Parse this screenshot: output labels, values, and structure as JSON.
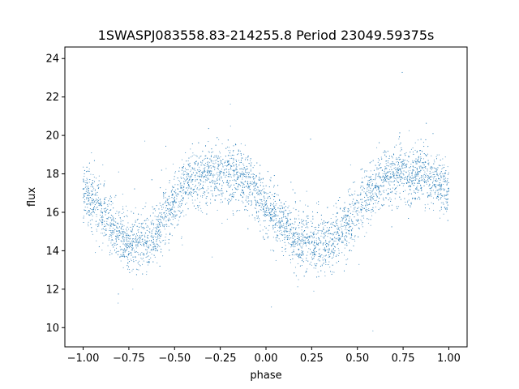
{
  "chart_data": {
    "type": "scatter",
    "title": "1SWASPJ083558.83-214255.8 Period 23049.59375s",
    "xlabel": "phase",
    "ylabel": "flux",
    "xlim": [
      -1.1,
      1.1
    ],
    "ylim": [
      9.0,
      24.6
    ],
    "xticks": [
      -1.0,
      -0.75,
      -0.5,
      -0.25,
      0.0,
      0.25,
      0.5,
      0.75,
      1.0
    ],
    "xtick_labels": [
      "−1.00",
      "−0.75",
      "−0.50",
      "−0.25",
      "0.00",
      "0.25",
      "0.50",
      "0.75",
      "1.00"
    ],
    "yticks": [
      10,
      12,
      14,
      16,
      18,
      20,
      22,
      24
    ],
    "ytick_labels": [
      "10",
      "12",
      "14",
      "16",
      "18",
      "20",
      "22",
      "24"
    ],
    "grid": false,
    "marker_color": "#1f77b4",
    "series": [
      {
        "x": [
          -1.0,
          -0.95,
          -0.9,
          -0.85,
          -0.8,
          -0.75,
          -0.7,
          -0.65,
          -0.6,
          -0.55,
          -0.5,
          -0.45,
          -0.4,
          -0.35,
          -0.3,
          -0.25,
          -0.2,
          -0.15,
          -0.1,
          -0.05,
          0.0,
          0.05,
          0.1,
          0.15,
          0.2,
          0.25,
          0.3,
          0.35,
          0.4,
          0.45,
          0.5,
          0.55,
          0.6,
          0.65,
          0.7,
          0.75,
          0.8,
          0.85,
          0.9,
          0.95,
          1.0
        ],
        "y": [
          17.2,
          16.6,
          16.0,
          15.3,
          14.8,
          14.5,
          14.4,
          14.5,
          15.0,
          15.8,
          16.6,
          17.3,
          17.7,
          17.9,
          18.0,
          18.0,
          18.0,
          17.8,
          17.5,
          17.0,
          16.4,
          15.8,
          15.2,
          14.8,
          14.5,
          14.4,
          14.4,
          14.5,
          14.8,
          15.4,
          16.2,
          16.9,
          17.4,
          17.8,
          18.0,
          18.0,
          18.0,
          17.9,
          17.7,
          17.4,
          17.1
        ]
      }
    ]
  }
}
